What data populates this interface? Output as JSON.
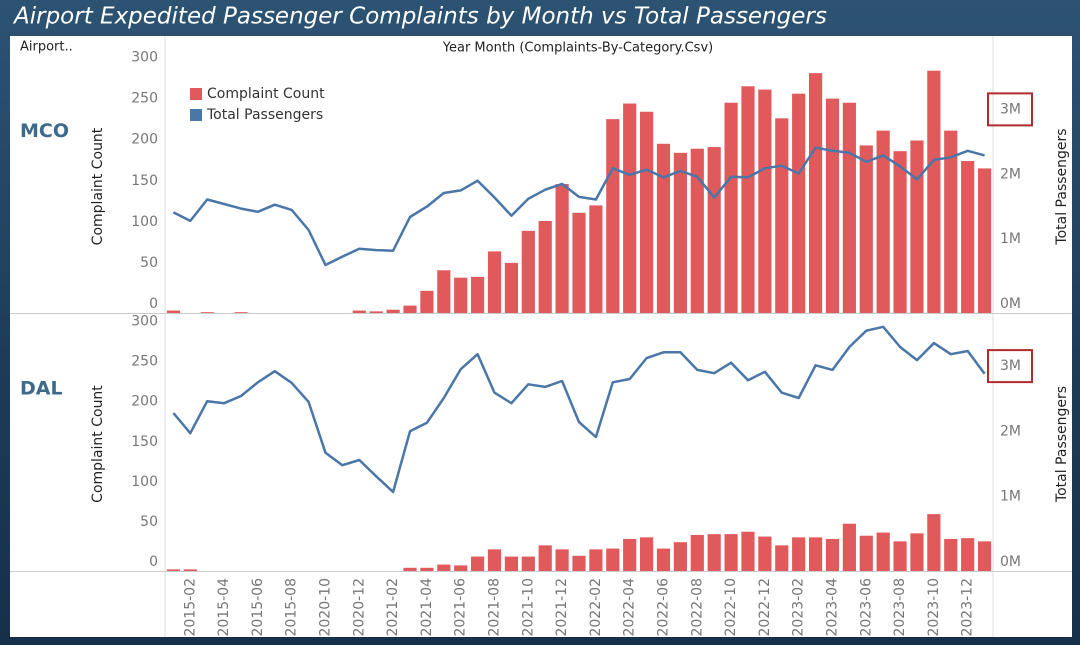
{
  "title": "Airport Expedited Passenger Complaints by Month vs Total Passengers",
  "header": {
    "row_field": "Airport..",
    "column_field": "Year Month (Complaints-By-Category.Csv)"
  },
  "chart_data": [
    {
      "type": "combo",
      "row_label": "MCO",
      "ylabel": "Complaint Count",
      "y2label": "Total Passengers",
      "legend": "upper left",
      "ylim": [
        0,
        308
      ],
      "yticks": [
        0,
        50,
        100,
        150,
        200,
        250,
        300
      ],
      "y2lim": [
        0,
        3900000
      ],
      "y2ticks": [
        {
          "value": 0,
          "label": "0M"
        },
        {
          "value": 1000000,
          "label": "1M"
        },
        {
          "value": 2000000,
          "label": "2M"
        },
        {
          "value": 3000000,
          "label": "3M"
        }
      ],
      "series": [
        {
          "name": "Complaint Count",
          "type": "bar",
          "color": "#e05a5b",
          "values": [
            3,
            0,
            1,
            0,
            1,
            0,
            0,
            0,
            0,
            0,
            0,
            3,
            2,
            4,
            9,
            27,
            52,
            43,
            44,
            75,
            61,
            100,
            112,
            157,
            122,
            131,
            236,
            255,
            245,
            206,
            195,
            200,
            202,
            256,
            276,
            272,
            237,
            267,
            292,
            261,
            256,
            204,
            222,
            197,
            210,
            295,
            222,
            185,
            176
          ]
        },
        {
          "name": "Total Passengers",
          "type": "line",
          "color": "#4a76a8",
          "axis": "y2",
          "values": [
            1550000,
            1420000,
            1750000,
            1680000,
            1610000,
            1560000,
            1670000,
            1590000,
            1280000,
            740000,
            870000,
            990000,
            970000,
            960000,
            1480000,
            1640000,
            1850000,
            1890000,
            2040000,
            1780000,
            1500000,
            1760000,
            1900000,
            1990000,
            1790000,
            1750000,
            2230000,
            2130000,
            2210000,
            2090000,
            2190000,
            2100000,
            1780000,
            2100000,
            2090000,
            2230000,
            2270000,
            2150000,
            2550000,
            2500000,
            2470000,
            2330000,
            2430000,
            2260000,
            2060000,
            2360000,
            2400000,
            2500000,
            2430000
          ]
        }
      ]
    },
    {
      "type": "combo",
      "row_label": "DAL",
      "ylabel": "Complaint Count",
      "y2label": "Total Passengers",
      "categories": [
        null,
        "2015-02",
        null,
        "2015-04",
        null,
        "2015-06",
        null,
        "2015-08",
        null,
        "2020-10",
        null,
        "2020-12",
        null,
        "2021-02",
        null,
        "2021-04",
        null,
        "2021-06",
        null,
        "2021-08",
        null,
        "2021-10",
        null,
        "2021-12",
        null,
        "2022-02",
        null,
        "2022-04",
        null,
        "2022-06",
        null,
        "2022-08",
        null,
        "2022-10",
        null,
        "2022-12",
        null,
        "2023-02",
        null,
        "2023-04",
        null,
        "2023-06",
        null,
        "2023-08",
        null,
        "2023-10",
        null,
        "2023-12",
        null
      ],
      "ylim": [
        0,
        317
      ],
      "yticks": [
        0,
        50,
        100,
        150,
        200,
        250,
        300
      ],
      "y2lim": [
        0,
        3890000
      ],
      "y2ticks": [
        {
          "value": 0,
          "label": "0M"
        },
        {
          "value": 1000000,
          "label": "1M"
        },
        {
          "value": 2000000,
          "label": "2M"
        },
        {
          "value": 3000000,
          "label": "3M"
        }
      ],
      "series": [
        {
          "type": "bar",
          "color": "#e05a5b",
          "values": [
            2,
            2,
            0,
            0,
            0,
            0,
            0,
            0,
            0,
            0,
            0,
            0,
            0,
            0,
            4,
            4,
            8,
            7,
            18,
            27,
            18,
            18,
            32,
            27,
            19,
            27,
            28,
            40,
            42,
            28,
            36,
            45,
            46,
            46,
            49,
            43,
            32,
            42,
            42,
            40,
            59,
            44,
            48,
            37,
            47,
            71,
            40,
            41,
            37
          ]
        },
        {
          "type": "line",
          "color": "#4a76a8",
          "axis": "y2",
          "values": [
            2420000,
            2110000,
            2600000,
            2570000,
            2680000,
            2890000,
            3060000,
            2880000,
            2590000,
            1810000,
            1620000,
            1700000,
            1450000,
            1210000,
            2140000,
            2270000,
            2650000,
            3090000,
            3320000,
            2730000,
            2570000,
            2860000,
            2820000,
            2910000,
            2280000,
            2050000,
            2890000,
            2940000,
            3260000,
            3350000,
            3350000,
            3080000,
            3030000,
            3190000,
            2920000,
            3050000,
            2730000,
            2650000,
            3150000,
            3080000,
            3430000,
            3680000,
            3740000,
            3430000,
            3230000,
            3490000,
            3320000,
            3370000,
            3020000
          ]
        }
      ]
    }
  ]
}
